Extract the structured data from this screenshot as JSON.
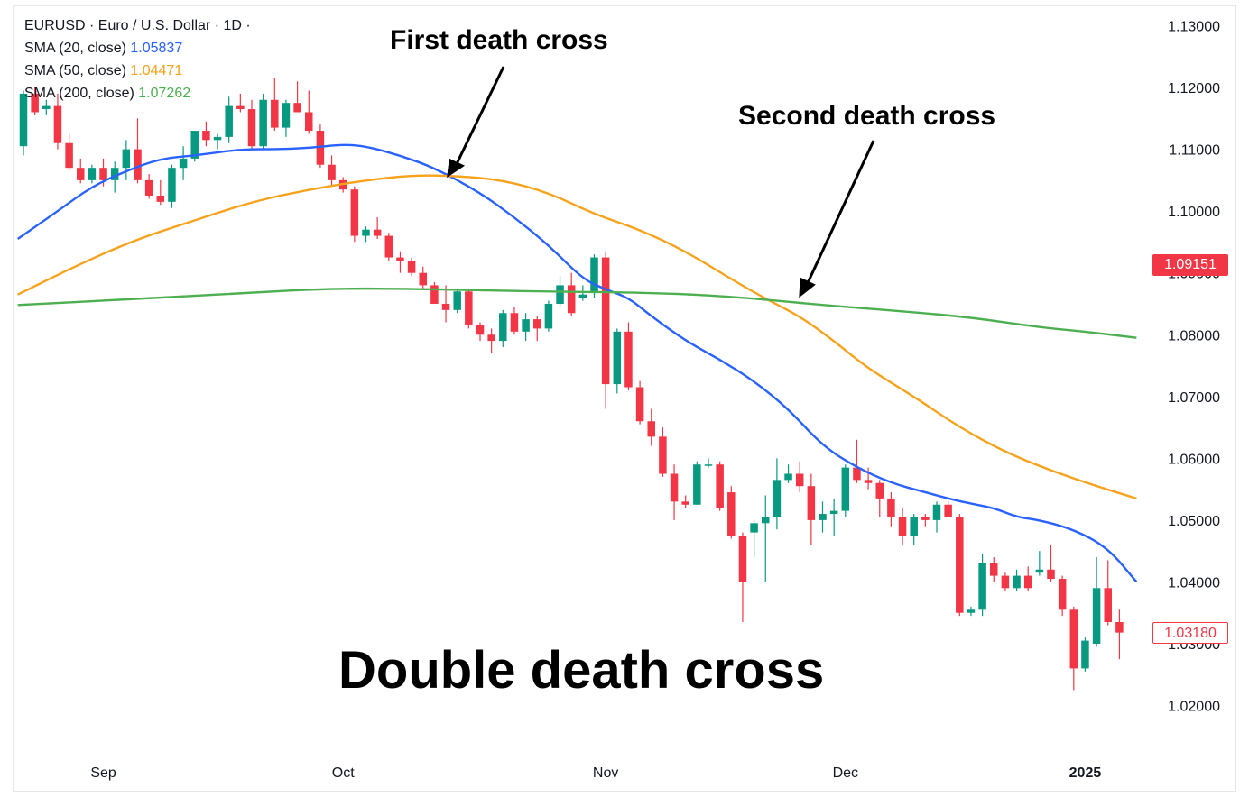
{
  "header": {
    "symbol_line": "EURUSD · Euro / U.S. Dollar · 1D ·",
    "sma20_label": "SMA (20, close)",
    "sma20_value": "1.05837",
    "sma50_label": "SMA (50, close)",
    "sma50_value": "1.04471",
    "sma200_label": "SMA (200, close)",
    "sma200_value": "1.07262"
  },
  "annotations": {
    "first": "First death cross",
    "second": "Second death cross",
    "title": "Double death cross"
  },
  "price_tags": {
    "tag1": "1.09151",
    "tag2": "1.03180"
  },
  "colors": {
    "up": "#089981",
    "down": "#f23645",
    "sma20": "#2962ff",
    "sma50": "#f7a21b",
    "sma200": "#4caf50"
  },
  "chart_data": {
    "type": "candlestick",
    "yaxis": {
      "range": [
        1.0135,
        1.1345
      ],
      "ticks": [
        "1.13000",
        "1.12000",
        "1.11000",
        "1.10000",
        "1.09000",
        "1.08000",
        "1.07000",
        "1.06000",
        "1.05000",
        "1.04000",
        "1.03000",
        "1.02000"
      ]
    },
    "xaxis": {
      "ticks": [
        {
          "label": "Sep",
          "index": 7,
          "bold": false
        },
        {
          "label": "Oct",
          "index": 28,
          "bold": false
        },
        {
          "label": "Nov",
          "index": 51,
          "bold": false
        },
        {
          "label": "Dec",
          "index": 72,
          "bold": false
        },
        {
          "label": "2025",
          "index": 93,
          "bold": true
        }
      ]
    },
    "candles": [
      [
        1.1105,
        1.1195,
        1.109,
        1.119
      ],
      [
        1.119,
        1.12,
        1.1155,
        1.116
      ],
      [
        1.1165,
        1.118,
        1.1155,
        1.117
      ],
      [
        1.117,
        1.119,
        1.11,
        1.111
      ],
      [
        1.111,
        1.1125,
        1.1065,
        1.107
      ],
      [
        1.107,
        1.1085,
        1.1045,
        1.105
      ],
      [
        1.105,
        1.1075,
        1.1045,
        1.107
      ],
      [
        1.107,
        1.1085,
        1.104,
        1.105
      ],
      [
        1.105,
        1.108,
        1.103,
        1.107
      ],
      [
        1.107,
        1.1115,
        1.105,
        1.11
      ],
      [
        1.11,
        1.115,
        1.1045,
        1.105
      ],
      [
        1.105,
        1.106,
        1.102,
        1.1025
      ],
      [
        1.1025,
        1.105,
        1.101,
        1.1015
      ],
      [
        1.1015,
        1.1075,
        1.1005,
        1.107
      ],
      [
        1.107,
        1.1105,
        1.105,
        1.1085
      ],
      [
        1.1085,
        1.113,
        1.108,
        1.113
      ],
      [
        1.113,
        1.1145,
        1.1105,
        1.1115
      ],
      [
        1.1115,
        1.1125,
        1.11,
        1.112
      ],
      [
        1.112,
        1.1185,
        1.111,
        1.117
      ],
      [
        1.117,
        1.119,
        1.116,
        1.1165
      ],
      [
        1.1165,
        1.118,
        1.11,
        1.1105
      ],
      [
        1.1105,
        1.119,
        1.11,
        1.118
      ],
      [
        1.118,
        1.1215,
        1.113,
        1.1135
      ],
      [
        1.1135,
        1.118,
        1.112,
        1.1175
      ],
      [
        1.1175,
        1.121,
        1.116,
        1.116
      ],
      [
        1.116,
        1.1195,
        1.1125,
        1.113
      ],
      [
        1.113,
        1.114,
        1.107,
        1.1075
      ],
      [
        1.1075,
        1.109,
        1.104,
        1.105
      ],
      [
        1.105,
        1.1055,
        1.103,
        1.1035
      ],
      [
        1.1035,
        1.104,
        1.095,
        1.096
      ],
      [
        1.096,
        1.0975,
        1.095,
        1.097
      ],
      [
        1.097,
        1.099,
        1.0955,
        1.096
      ],
      [
        1.096,
        1.0965,
        1.092,
        1.0925
      ],
      [
        1.0925,
        1.0935,
        1.09,
        1.092
      ],
      [
        1.092,
        1.0925,
        1.0895,
        1.09
      ],
      [
        1.09,
        1.091,
        1.0875,
        1.088
      ],
      [
        1.088,
        1.0885,
        1.086,
        1.085
      ],
      [
        1.085,
        1.088,
        1.082,
        1.084
      ],
      [
        1.084,
        1.0875,
        1.0835,
        1.087
      ],
      [
        1.087,
        1.0875,
        1.081,
        1.0815
      ],
      [
        1.0815,
        1.082,
        1.079,
        1.08
      ],
      [
        1.08,
        1.081,
        1.077,
        1.079
      ],
      [
        1.079,
        1.084,
        1.078,
        1.0835
      ],
      [
        1.0835,
        1.0845,
        1.08,
        1.0805
      ],
      [
        1.0805,
        1.0835,
        1.079,
        1.0825
      ],
      [
        1.0825,
        1.083,
        1.079,
        1.081
      ],
      [
        1.081,
        1.0855,
        1.0805,
        1.085
      ],
      [
        1.085,
        1.0895,
        1.0845,
        1.088
      ],
      [
        1.088,
        1.09,
        1.083,
        1.0835
      ],
      [
        1.086,
        1.088,
        1.0855,
        1.0865
      ],
      [
        1.087,
        1.093,
        1.086,
        1.0925
      ],
      [
        1.0925,
        1.0935,
        1.068,
        1.072
      ],
      [
        1.072,
        1.081,
        1.0705,
        1.0805
      ],
      [
        1.0805,
        1.082,
        1.071,
        1.0715
      ],
      [
        1.0715,
        1.0725,
        1.0655,
        1.066
      ],
      [
        1.066,
        1.068,
        1.062,
        1.0635
      ],
      [
        1.0635,
        1.065,
        1.057,
        1.0575
      ],
      [
        1.0575,
        1.059,
        1.05,
        1.053
      ],
      [
        1.053,
        1.054,
        1.052,
        1.0525
      ],
      [
        1.0525,
        1.0595,
        1.0525,
        1.059
      ],
      [
        1.059,
        1.06,
        1.0585,
        1.059
      ],
      [
        1.059,
        1.0595,
        1.0515,
        1.052
      ],
      [
        1.0545,
        1.0555,
        1.047,
        1.0475
      ],
      [
        1.0475,
        1.048,
        1.0335,
        1.04
      ],
      [
        1.048,
        1.05,
        1.044,
        1.0495
      ],
      [
        1.0495,
        1.054,
        1.04,
        1.0505
      ],
      [
        1.0505,
        1.06,
        1.0485,
        1.0565
      ],
      [
        1.0565,
        1.059,
        1.056,
        1.0575
      ],
      [
        1.0575,
        1.0595,
        1.0545,
        1.0555
      ],
      [
        1.0555,
        1.0575,
        1.046,
        1.05
      ],
      [
        1.05,
        1.053,
        1.048,
        1.051
      ],
      [
        1.051,
        1.0535,
        1.0475,
        1.0515
      ],
      [
        1.0515,
        1.059,
        1.0505,
        1.0585
      ],
      [
        1.0585,
        1.063,
        1.056,
        1.0565
      ],
      [
        1.0565,
        1.0585,
        1.055,
        1.056
      ],
      [
        1.056,
        1.0565,
        1.0505,
        1.0535
      ],
      [
        1.0535,
        1.0545,
        1.049,
        1.0505
      ],
      [
        1.0505,
        1.052,
        1.046,
        1.0475
      ],
      [
        1.0475,
        1.051,
        1.046,
        1.0505
      ],
      [
        1.0505,
        1.051,
        1.049,
        1.05
      ],
      [
        1.05,
        1.053,
        1.048,
        1.0525
      ],
      [
        1.0525,
        1.053,
        1.0505,
        1.0505
      ],
      [
        1.0505,
        1.051,
        1.0345,
        1.035
      ],
      [
        1.035,
        1.036,
        1.0345,
        1.0355
      ],
      [
        1.0355,
        1.0445,
        1.0345,
        1.043
      ],
      [
        1.043,
        1.044,
        1.04,
        1.041
      ],
      [
        1.041,
        1.0415,
        1.0385,
        1.039
      ],
      [
        1.039,
        1.042,
        1.0385,
        1.041
      ],
      [
        1.041,
        1.0425,
        1.0385,
        1.039
      ],
      [
        1.0415,
        1.045,
        1.041,
        1.042
      ],
      [
        1.042,
        1.046,
        1.04,
        1.0405
      ],
      [
        1.0405,
        1.041,
        1.0345,
        1.0355
      ],
      [
        1.0355,
        1.036,
        1.0225,
        1.026
      ],
      [
        1.026,
        1.031,
        1.0255,
        1.0305
      ],
      [
        1.03,
        1.044,
        1.0295,
        1.039
      ],
      [
        1.039,
        1.0435,
        1.033,
        1.0335
      ],
      [
        1.0335,
        1.0355,
        1.0275,
        1.0318
      ]
    ],
    "series": [
      {
        "name": "SMA (20, close)",
        "color": "#2962ff",
        "points": [
          [
            -0.5,
            1.0955
          ],
          [
            3,
            1.1
          ],
          [
            6,
            1.104
          ],
          [
            9,
            1.1065
          ],
          [
            12,
            1.1085
          ],
          [
            15,
            1.109
          ],
          [
            19,
            1.11
          ],
          [
            22,
            1.11
          ],
          [
            25,
            1.1102
          ],
          [
            28,
            1.1108
          ],
          [
            30,
            1.1105
          ],
          [
            33,
            1.109
          ],
          [
            36,
            1.107
          ],
          [
            40,
            1.103
          ],
          [
            43,
            1.099
          ],
          [
            46,
            1.0945
          ],
          [
            49,
            1.089
          ],
          [
            51,
            1.0873
          ],
          [
            53,
            1.086
          ],
          [
            55,
            1.083
          ],
          [
            58,
            1.079
          ],
          [
            61,
            1.076
          ],
          [
            64,
            1.0725
          ],
          [
            67,
            1.068
          ],
          [
            70,
            1.062
          ],
          [
            73,
            1.0585
          ],
          [
            76,
            1.056
          ],
          [
            79,
            1.0545
          ],
          [
            82,
            1.053
          ],
          [
            85,
            1.052
          ],
          [
            87,
            1.0505
          ],
          [
            89,
            1.05
          ],
          [
            92,
            1.0485
          ],
          [
            95,
            1.0455
          ],
          [
            97.5,
            1.04
          ]
        ]
      },
      {
        "name": "SMA (50, close)",
        "color": "#f7a21b",
        "points": [
          [
            -0.5,
            1.0865
          ],
          [
            5,
            1.0915
          ],
          [
            10,
            1.0955
          ],
          [
            15,
            1.0985
          ],
          [
            20,
            1.1015
          ],
          [
            25,
            1.1035
          ],
          [
            30,
            1.105
          ],
          [
            34,
            1.1058
          ],
          [
            38,
            1.1057
          ],
          [
            42,
            1.105
          ],
          [
            46,
            1.103
          ],
          [
            50,
            1.0995
          ],
          [
            54,
            1.097
          ],
          [
            58,
            1.0935
          ],
          [
            62,
            1.089
          ],
          [
            65,
            1.0858
          ],
          [
            68,
            1.083
          ],
          [
            71,
            1.079
          ],
          [
            74,
            1.0745
          ],
          [
            78,
            1.07
          ],
          [
            82,
            1.065
          ],
          [
            86,
            1.061
          ],
          [
            90,
            1.058
          ],
          [
            94,
            1.0555
          ],
          [
            97.5,
            1.0535
          ]
        ]
      },
      {
        "name": "SMA (200, close)",
        "color": "#4caf50",
        "points": [
          [
            -0.5,
            1.0848
          ],
          [
            10,
            1.0858
          ],
          [
            20,
            1.0868
          ],
          [
            27,
            1.0875
          ],
          [
            35,
            1.0874
          ],
          [
            45,
            1.087
          ],
          [
            55,
            1.0868
          ],
          [
            62,
            1.0862
          ],
          [
            70,
            1.0848
          ],
          [
            77,
            1.0838
          ],
          [
            83,
            1.0828
          ],
          [
            89,
            1.0812
          ],
          [
            93,
            1.0805
          ],
          [
            97.5,
            1.0795
          ]
        ]
      }
    ]
  }
}
